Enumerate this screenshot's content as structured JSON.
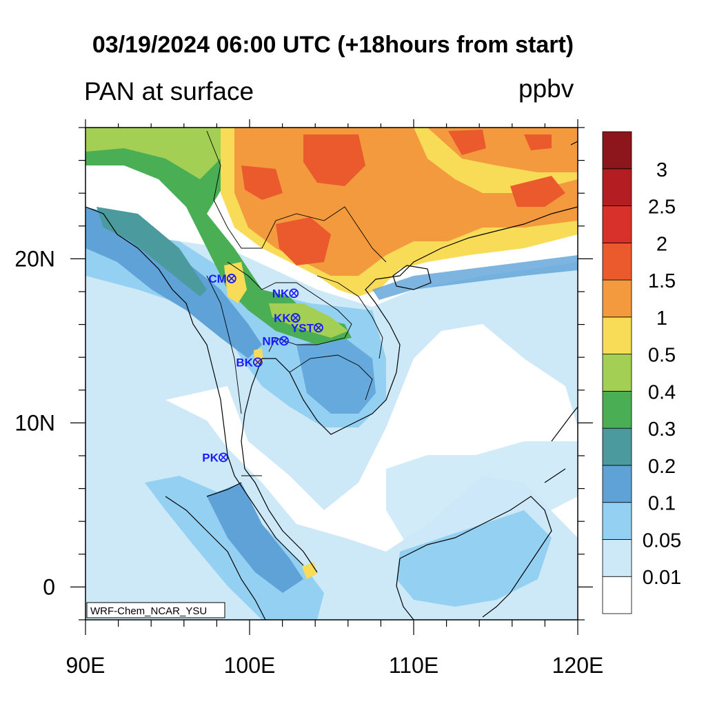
{
  "title": "03/19/2024 06:00 UTC (+18hours from start)",
  "subtitle": "PAN at surface",
  "units": "ppbv",
  "watermark": "WRF-Chem_NCAR_YSU",
  "map": {
    "lon_range": [
      90,
      120
    ],
    "lat_range": [
      -2,
      28
    ],
    "lon_ticks": [
      {
        "value": 90,
        "label": "90E"
      },
      {
        "value": 100,
        "label": "100E"
      },
      {
        "value": 110,
        "label": "110E"
      },
      {
        "value": 120,
        "label": "120E"
      }
    ],
    "lat_ticks": [
      {
        "value": 0,
        "label": "0"
      },
      {
        "value": 10,
        "label": "10N"
      },
      {
        "value": 20,
        "label": "20N"
      }
    ],
    "stations": [
      {
        "name": "CM",
        "lon": 98.9,
        "lat": 18.8
      },
      {
        "name": "NK",
        "lon": 102.7,
        "lat": 17.9
      },
      {
        "name": "KK",
        "lon": 102.8,
        "lat": 16.4
      },
      {
        "name": "YST",
        "lon": 104.2,
        "lat": 15.8
      },
      {
        "name": "NR",
        "lon": 102.1,
        "lat": 15.0
      },
      {
        "name": "BK",
        "lon": 100.5,
        "lat": 13.7
      },
      {
        "name": "PK",
        "lon": 98.4,
        "lat": 7.9
      }
    ],
    "station_color": "#1a1aff"
  },
  "legend": {
    "levels": [
      "0.01",
      "0.05",
      "0.1",
      "0.2",
      "0.3",
      "0.4",
      "0.5",
      "1",
      "1.5",
      "2",
      "2.5",
      "3"
    ],
    "colors": [
      "#ffffff",
      "#cde9f8",
      "#94d0f1",
      "#5ea2d8",
      "#4a9a9e",
      "#4aae54",
      "#a4cf55",
      "#f8dc58",
      "#f49a3e",
      "#ea5a2c",
      "#d8302a",
      "#b41e23",
      "#8c161c"
    ]
  }
}
